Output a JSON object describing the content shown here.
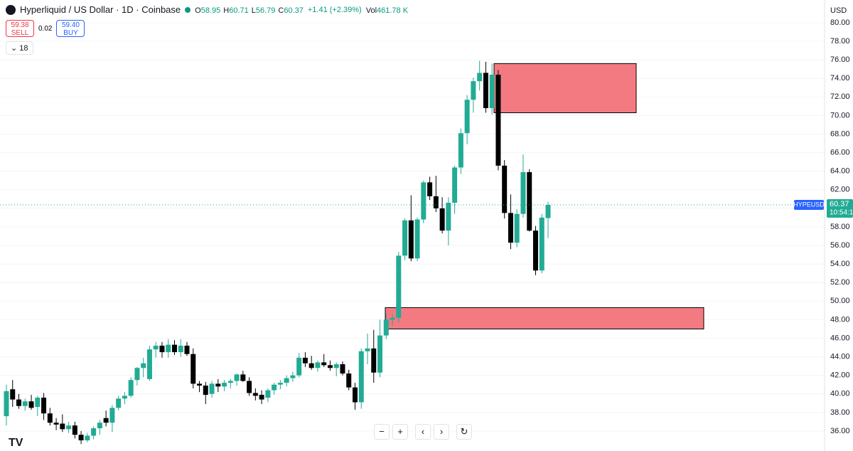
{
  "chart_data": {
    "type": "candlestick",
    "symbol_title": "Hyperliquid / US Dollar · 1D · Coinbase",
    "ohlc_legend": [
      {
        "label": "O",
        "value": "58.95"
      },
      {
        "label": "H",
        "value": "60.71"
      },
      {
        "label": "L",
        "value": "56.79"
      },
      {
        "label": "C",
        "value": "60.37"
      }
    ],
    "change": "+1.41 (+2.39%)",
    "volume": {
      "label": "Vol",
      "value": "461.78 K"
    },
    "sell": {
      "price": "59.38",
      "label": "SELL"
    },
    "spread": "0.02",
    "buy": {
      "price": "59.40",
      "label": "BUY"
    },
    "indicator_count": "18",
    "currency": "USD",
    "last_price": {
      "symbol": "HYPEUSD",
      "value": 60.37,
      "timer": "10:54:1"
    },
    "up_color": "#22ab94",
    "down_color": "#000000",
    "zone_color": "#f47a82",
    "zones": [
      {
        "top": 75.6,
        "bottom": 70.3
      },
      {
        "top": 49.3,
        "bottom": 47.0
      }
    ],
    "ylim": [
      33.85,
      82.45
    ],
    "yticks": [
      {
        "value": 36,
        "label": "36.00"
      },
      {
        "value": 38,
        "label": "38.00"
      },
      {
        "value": 40,
        "label": "40.00"
      },
      {
        "value": 42,
        "label": "42.00"
      },
      {
        "value": 44,
        "label": "44.00"
      },
      {
        "value": 46,
        "label": "46.00"
      },
      {
        "value": 48,
        "label": "48.00"
      },
      {
        "value": 50,
        "label": "50.00"
      },
      {
        "value": 52,
        "label": "52.00"
      },
      {
        "value": 54,
        "label": "54.00"
      },
      {
        "value": 56,
        "label": "56.00"
      },
      {
        "value": 58,
        "label": "58.00"
      },
      {
        "value": 60,
        "label": "60.00"
      },
      {
        "value": 62,
        "label": "62.00"
      },
      {
        "value": 64,
        "label": "64.00"
      },
      {
        "value": 66,
        "label": "66.00"
      },
      {
        "value": 68,
        "label": "68.00"
      },
      {
        "value": 70,
        "label": "70.00"
      },
      {
        "value": 72,
        "label": "72.00"
      },
      {
        "value": 74,
        "label": "74.00"
      },
      {
        "value": 76,
        "label": "76.00"
      },
      {
        "value": 78,
        "label": "78.00"
      },
      {
        "value": 80,
        "label": "80.00"
      }
    ],
    "open": [
      37.6,
      40.5,
      39.4,
      38.7,
      39.2,
      38.6,
      39.6,
      37.9,
      36.9,
      36.8,
      36.2,
      36.6,
      35.6,
      35.0,
      35.5,
      36.3,
      37.4,
      36.9,
      38.5,
      39.5,
      39.8,
      41.5,
      42.8,
      41.6,
      44.8,
      45.2,
      44.5,
      45.3,
      44.5,
      45.2,
      44.3,
      41.1,
      40.9,
      40.0,
      41.1,
      40.8,
      41.2,
      41.4,
      42.1,
      41.4,
      40.1,
      39.9,
      39.6,
      40.4,
      41.0,
      41.2,
      41.7,
      42.0,
      43.9,
      43.3,
      42.8,
      43.4,
      43.1,
      42.8,
      43.2,
      42.2,
      40.7,
      39.1,
      44.6,
      44.9,
      42.3,
      46.3,
      48.0,
      48.2,
      54.9,
      58.7,
      54.6,
      58.8,
      62.8,
      61.3,
      60.0,
      57.6,
      60.6,
      64.4,
      68.1,
      71.7,
      73.7,
      74.6,
      70.8,
      74.4,
      64.6,
      59.5,
      56.3,
      59.4,
      63.9,
      57.6,
      53.3,
      58.95
    ],
    "high": [
      41.0,
      41.5,
      40.0,
      39.5,
      39.9,
      39.8,
      40.1,
      38.5,
      37.4,
      37.8,
      37.0,
      37.0,
      36.0,
      35.8,
      36.5,
      37.2,
      38.2,
      38.8,
      39.8,
      40.2,
      41.8,
      42.9,
      43.9,
      45.2,
      45.6,
      45.6,
      45.9,
      45.8,
      45.9,
      45.6,
      44.9,
      41.4,
      41.3,
      41.4,
      41.6,
      41.5,
      41.6,
      42.2,
      42.5,
      41.8,
      40.6,
      40.4,
      40.6,
      41.2,
      41.5,
      42.0,
      42.4,
      44.4,
      44.5,
      44.1,
      43.6,
      44.3,
      43.6,
      43.4,
      43.5,
      42.6,
      41.2,
      44.9,
      46.5,
      46.9,
      48.0,
      48.7,
      48.6,
      55.3,
      58.9,
      61.4,
      59.0,
      63.0,
      63.4,
      63.5,
      61.2,
      61.2,
      64.6,
      68.6,
      72.2,
      74.1,
      75.9,
      75.8,
      75.6,
      74.9,
      65.2,
      61.5,
      59.9,
      65.8,
      64.2,
      58.1,
      59.4,
      60.71
    ],
    "low": [
      36.6,
      38.6,
      38.4,
      38.2,
      38.3,
      37.6,
      37.2,
      36.6,
      36.1,
      35.9,
      35.8,
      35.2,
      34.6,
      34.8,
      35.1,
      35.6,
      36.5,
      35.9,
      38.2,
      38.9,
      39.6,
      40.9,
      41.8,
      41.4,
      43.9,
      43.9,
      43.9,
      44.2,
      44.0,
      44.1,
      40.6,
      40.2,
      38.9,
      39.6,
      40.2,
      40.3,
      40.6,
      40.9,
      41.3,
      39.8,
      39.3,
      38.9,
      39.1,
      39.9,
      40.5,
      40.8,
      41.3,
      41.8,
      42.9,
      42.6,
      42.4,
      42.9,
      42.5,
      41.9,
      42.0,
      40.4,
      38.3,
      38.4,
      43.2,
      41.2,
      41.8,
      45.9,
      47.3,
      47.7,
      54.4,
      54.3,
      54.3,
      58.4,
      60.9,
      59.6,
      57.3,
      56.0,
      59.4,
      63.7,
      66.9,
      70.3,
      72.7,
      70.3,
      70.1,
      64.1,
      58.9,
      55.6,
      55.8,
      59.0,
      57.5,
      52.8,
      53.0,
      56.79
    ],
    "close": [
      40.3,
      39.4,
      38.7,
      39.2,
      38.5,
      39.6,
      37.9,
      36.9,
      36.7,
      36.2,
      36.6,
      35.6,
      35.0,
      35.5,
      36.3,
      36.9,
      36.9,
      38.5,
      39.5,
      39.8,
      41.5,
      42.8,
      43.3,
      44.8,
      45.2,
      44.5,
      45.3,
      44.5,
      45.2,
      44.3,
      41.1,
      40.9,
      39.9,
      41.1,
      40.8,
      41.2,
      41.4,
      42.1,
      41.4,
      40.1,
      39.8,
      39.4,
      40.4,
      41.0,
      41.2,
      41.7,
      42.0,
      43.9,
      43.3,
      42.8,
      43.4,
      43.1,
      42.8,
      43.2,
      42.2,
      40.7,
      39.1,
      44.6,
      44.9,
      42.3,
      46.3,
      48.0,
      48.2,
      54.9,
      58.7,
      54.6,
      58.8,
      62.8,
      61.3,
      60.0,
      57.6,
      60.6,
      64.4,
      68.1,
      71.7,
      73.7,
      74.6,
      70.8,
      74.4,
      64.6,
      59.5,
      56.3,
      59.4,
      63.9,
      57.6,
      53.3,
      59.0,
      60.37
    ],
    "grid": true
  }
}
